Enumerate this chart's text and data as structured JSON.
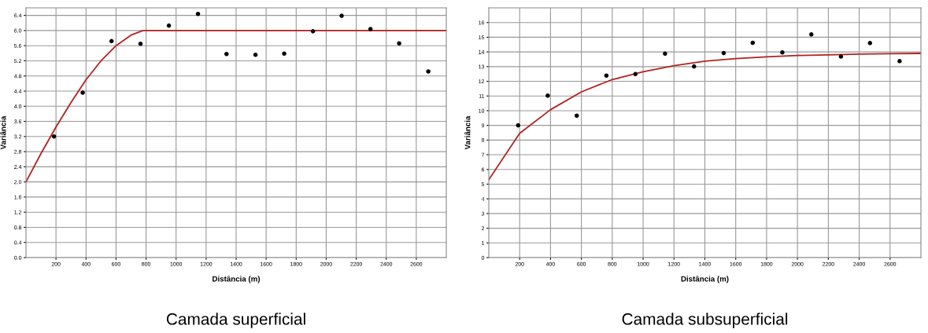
{
  "chart_data": [
    {
      "type": "scatter",
      "xlabel": "Distância (m)",
      "ylabel": "Variância",
      "annotations": [
        "Camada superficial"
      ],
      "xlim": [
        0,
        2800
      ],
      "ylim": [
        0,
        6.6
      ],
      "grid": true,
      "xticks": [
        200,
        400,
        600,
        800,
        1000,
        1200,
        1400,
        1600,
        1800,
        2000,
        2200,
        2400,
        2600
      ],
      "yticks": [
        {
          "value": 0,
          "label": "0.0"
        },
        {
          "value": 0.4,
          "label": "0.4"
        },
        {
          "value": 0.8,
          "label": "0.8"
        },
        {
          "value": 1.2,
          "label": "1.2"
        },
        {
          "value": 1.6,
          "label": "1.6"
        },
        {
          "value": 2.0,
          "label": "2.0"
        },
        {
          "value": 2.4,
          "label": "2.4"
        },
        {
          "value": 2.8,
          "label": "2.8"
        },
        {
          "value": 3.2,
          "label": "3.2"
        },
        {
          "value": 3.6,
          "label": "3.6"
        },
        {
          "value": 4.0,
          "label": "4.0"
        },
        {
          "value": 4.4,
          "label": "4.4"
        },
        {
          "value": 4.8,
          "label": "4.8"
        },
        {
          "value": 5.2,
          "label": "5.2"
        },
        {
          "value": 5.6,
          "label": "5.6"
        },
        {
          "value": 6.0,
          "label": "6.0"
        },
        {
          "value": 6.4,
          "label": "6.4"
        }
      ],
      "series": [
        {
          "marker": "circle",
          "color": "#000000",
          "x": [
            187,
            378,
            570,
            763,
            952,
            1146,
            1336,
            1529,
            1720,
            1912,
            2103,
            2295,
            2486,
            2680
          ],
          "values": [
            3.2,
            4.36,
            5.72,
            5.65,
            6.13,
            6.44,
            5.38,
            5.36,
            5.39,
            5.98,
            6.39,
            6.04,
            5.66,
            4.92
          ]
        },
        {
          "type": "line",
          "marker": "none",
          "color": "#b22222",
          "x": [
            0,
            100,
            200,
            300,
            400,
            500,
            600,
            700,
            780,
            2800
          ],
          "values": [
            2.0,
            2.75,
            3.45,
            4.1,
            4.7,
            5.2,
            5.6,
            5.88,
            6.0,
            6.0
          ]
        }
      ]
    },
    {
      "type": "scatter",
      "xlabel": "Distância (m)",
      "ylabel": "Variância",
      "annotations": [
        "Camada subsuperficial"
      ],
      "xlim": [
        0,
        2800
      ],
      "ylim": [
        0,
        17
      ],
      "grid": true,
      "xticks": [
        200,
        400,
        600,
        800,
        1000,
        1200,
        1400,
        1600,
        1800,
        2000,
        2200,
        2400,
        2600
      ],
      "yticks": [
        0,
        1,
        2,
        3,
        4,
        5,
        6,
        7,
        8,
        9,
        10,
        11,
        12,
        13,
        14,
        15,
        16
      ],
      "series": [
        {
          "marker": "circle",
          "color": "#000000",
          "x": [
            190,
            382,
            570,
            762,
            950,
            1142,
            1330,
            1522,
            1710,
            1902,
            2090,
            2282,
            2470,
            2662
          ],
          "values": [
            9.0,
            11.03,
            9.66,
            12.39,
            12.49,
            13.88,
            13.01,
            13.92,
            14.62,
            13.97,
            15.19,
            13.69,
            14.6,
            13.37
          ]
        },
        {
          "type": "line",
          "marker": "none",
          "color": "#b22222",
          "x": [
            0,
            200,
            400,
            600,
            800,
            1000,
            1200,
            1400,
            1600,
            1800,
            2000,
            2200,
            2400,
            2600,
            2800
          ],
          "values": [
            5.3,
            8.46,
            10.07,
            11.28,
            12.12,
            12.65,
            13.06,
            13.37,
            13.55,
            13.67,
            13.76,
            13.8,
            13.85,
            13.88,
            13.9
          ]
        }
      ]
    }
  ]
}
